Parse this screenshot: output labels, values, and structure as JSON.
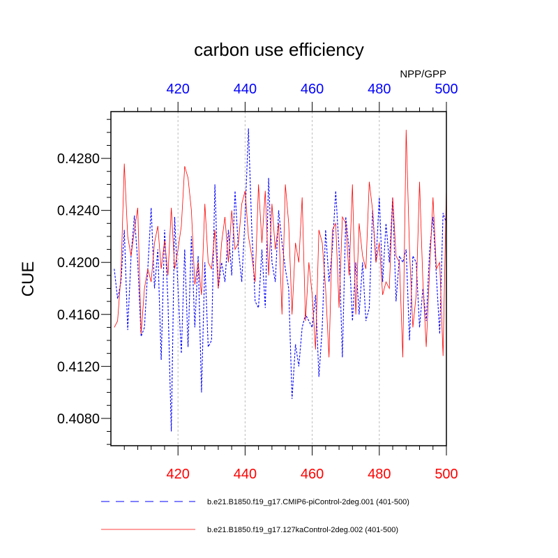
{
  "chart_data": {
    "type": "line",
    "title": "carbon use efficiency",
    "subtitle": "NPP/GPP",
    "ylabel": "CUE",
    "xlabel": "",
    "xlim": [
      400,
      500
    ],
    "ylim": [
      0.4059,
      0.4316
    ],
    "x_ticks": [
      420,
      440,
      460,
      480,
      500
    ],
    "y_ticks": [
      0.408,
      0.412,
      0.416,
      0.42,
      0.424,
      0.428
    ],
    "y_tick_labels": [
      "0.4080",
      "0.4120",
      "0.4160",
      "0.4200",
      "0.4240",
      "0.4280"
    ],
    "grid": "vertical dashed at x ticks",
    "top_axis_color": "#0000ff",
    "bottom_axis_color": "#ff0000",
    "x": [
      401,
      402,
      403,
      404,
      405,
      406,
      407,
      408,
      409,
      410,
      411,
      412,
      413,
      414,
      415,
      416,
      417,
      418,
      419,
      420,
      421,
      422,
      423,
      424,
      425,
      426,
      427,
      428,
      429,
      430,
      431,
      432,
      433,
      434,
      435,
      436,
      437,
      438,
      439,
      440,
      441,
      442,
      443,
      444,
      445,
      446,
      447,
      448,
      449,
      450,
      451,
      452,
      453,
      454,
      455,
      456,
      457,
      458,
      459,
      460,
      461,
      462,
      463,
      464,
      465,
      466,
      467,
      468,
      469,
      470,
      471,
      472,
      473,
      474,
      475,
      476,
      477,
      478,
      479,
      480,
      481,
      482,
      483,
      484,
      485,
      486,
      487,
      488,
      489,
      490,
      491,
      492,
      493,
      494,
      495,
      496,
      497,
      498,
      499,
      500
    ],
    "series": [
      {
        "name": "b.e21.B1850.f19_g17.CMIP6-piControl-2deg.001 (401-500)",
        "color": "#0000ff",
        "style": "dashed",
        "values": [
          0.4195,
          0.4172,
          0.4185,
          0.4225,
          0.4148,
          0.4205,
          0.4236,
          0.42,
          0.4143,
          0.415,
          0.4195,
          0.4242,
          0.418,
          0.421,
          0.4125,
          0.4225,
          0.417,
          0.407,
          0.4235,
          0.418,
          0.413,
          0.421,
          0.4135,
          0.422,
          0.415,
          0.4205,
          0.41,
          0.42,
          0.4135,
          0.414,
          0.426,
          0.418,
          0.42,
          0.4185,
          0.4225,
          0.419,
          0.4255,
          0.421,
          0.4185,
          0.4235,
          0.4303,
          0.4225,
          0.417,
          0.4165,
          0.421,
          0.4165,
          0.4265,
          0.42,
          0.4185,
          0.424,
          0.4215,
          0.4195,
          0.418,
          0.4095,
          0.4137,
          0.412,
          0.415,
          0.416,
          0.4155,
          0.415,
          0.4175,
          0.4112,
          0.415,
          0.4225,
          0.4185,
          0.421,
          0.4255,
          0.421,
          0.4127,
          0.4235,
          0.421,
          0.4155,
          0.42,
          0.416,
          0.42,
          0.4155,
          0.4165,
          0.424,
          0.42,
          0.425,
          0.4185,
          0.423,
          0.42,
          0.425,
          0.417,
          0.4205,
          0.42,
          0.421,
          0.414,
          0.4205,
          0.42,
          0.415,
          0.418,
          0.4155,
          0.421,
          0.4235,
          0.419,
          0.4145,
          0.4238,
          0.423
        ]
      },
      {
        "name": "b.e21.B1850.f19_g17.127kaControl-2deg.002 (401-500)",
        "color": "#ff0000",
        "style": "solid",
        "values": [
          0.415,
          0.4155,
          0.419,
          0.4276,
          0.422,
          0.4205,
          0.4225,
          0.4242,
          0.4145,
          0.418,
          0.4195,
          0.4185,
          0.4215,
          0.4228,
          0.4195,
          0.4217,
          0.419,
          0.4242,
          0.4195,
          0.421,
          0.4228,
          0.4274,
          0.4265,
          0.424,
          0.4183,
          0.42,
          0.4175,
          0.4245,
          0.42,
          0.4195,
          0.4225,
          0.418,
          0.4215,
          0.4235,
          0.42,
          0.424,
          0.421,
          0.4215,
          0.4245,
          0.4255,
          0.422,
          0.4205,
          0.4185,
          0.426,
          0.4215,
          0.4255,
          0.419,
          0.4245,
          0.421,
          0.423,
          0.416,
          0.426,
          0.423,
          0.416,
          0.4215,
          0.42,
          0.425,
          0.4155,
          0.42,
          0.4175,
          0.4133,
          0.4225,
          0.4215,
          0.418,
          0.4127,
          0.4225,
          0.423,
          0.4165,
          0.4235,
          0.423,
          0.419,
          0.426,
          0.416,
          0.423,
          0.4205,
          0.4195,
          0.4262,
          0.424,
          0.42,
          0.4215,
          0.4175,
          0.4185,
          0.418,
          0.425,
          0.4205,
          0.42,
          0.4127,
          0.4302,
          0.421,
          0.415,
          0.4175,
          0.4262,
          0.4185,
          0.4135,
          0.4195,
          0.425,
          0.4195,
          0.42,
          0.4128,
          0.4258
        ]
      }
    ]
  }
}
